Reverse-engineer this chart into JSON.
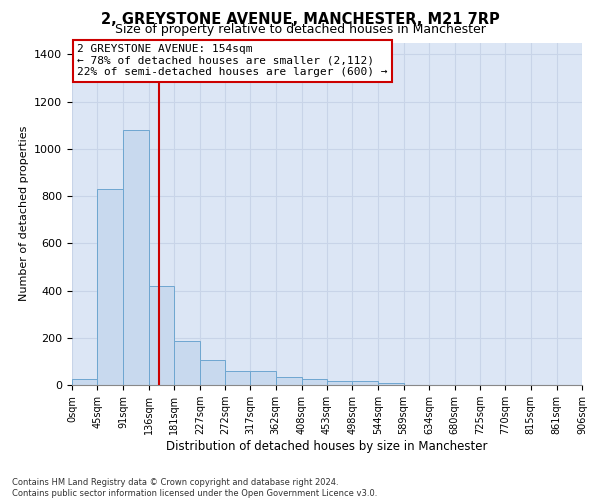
{
  "title": "2, GREYSTONE AVENUE, MANCHESTER, M21 7RP",
  "subtitle": "Size of property relative to detached houses in Manchester",
  "xlabel": "Distribution of detached houses by size in Manchester",
  "ylabel": "Number of detached properties",
  "footnote1": "Contains HM Land Registry data © Crown copyright and database right 2024.",
  "footnote2": "Contains public sector information licensed under the Open Government Licence v3.0.",
  "annotation_line1": "2 GREYSTONE AVENUE: 154sqm",
  "annotation_line2": "← 78% of detached houses are smaller (2,112)",
  "annotation_line3": "22% of semi-detached houses are larger (600) →",
  "bar_color": "#c8d9ee",
  "bar_edge_color": "#6ea6d0",
  "vline_color": "#cc0000",
  "vline_x": 154,
  "bin_edges": [
    0,
    45,
    91,
    136,
    181,
    227,
    272,
    317,
    362,
    408,
    453,
    498,
    544,
    589,
    634,
    680,
    725,
    770,
    815,
    861,
    906
  ],
  "bar_heights": [
    25,
    830,
    1080,
    420,
    185,
    105,
    58,
    58,
    35,
    25,
    15,
    15,
    8,
    0,
    0,
    0,
    0,
    0,
    0,
    0
  ],
  "xlim": [
    0,
    906
  ],
  "ylim": [
    0,
    1450
  ],
  "yticks": [
    0,
    200,
    400,
    600,
    800,
    1000,
    1200,
    1400
  ],
  "xtick_labels": [
    "0sqm",
    "45sqm",
    "91sqm",
    "136sqm",
    "181sqm",
    "227sqm",
    "272sqm",
    "317sqm",
    "362sqm",
    "408sqm",
    "453sqm",
    "498sqm",
    "544sqm",
    "589sqm",
    "634sqm",
    "680sqm",
    "725sqm",
    "770sqm",
    "815sqm",
    "861sqm",
    "906sqm"
  ],
  "grid_color": "#c8d4e8",
  "bg_color": "#dce6f5",
  "title_fontsize": 10.5,
  "subtitle_fontsize": 9,
  "ylabel_fontsize": 8,
  "xlabel_fontsize": 8.5,
  "annotation_fontsize": 8,
  "ytick_fontsize": 8,
  "xtick_fontsize": 7
}
